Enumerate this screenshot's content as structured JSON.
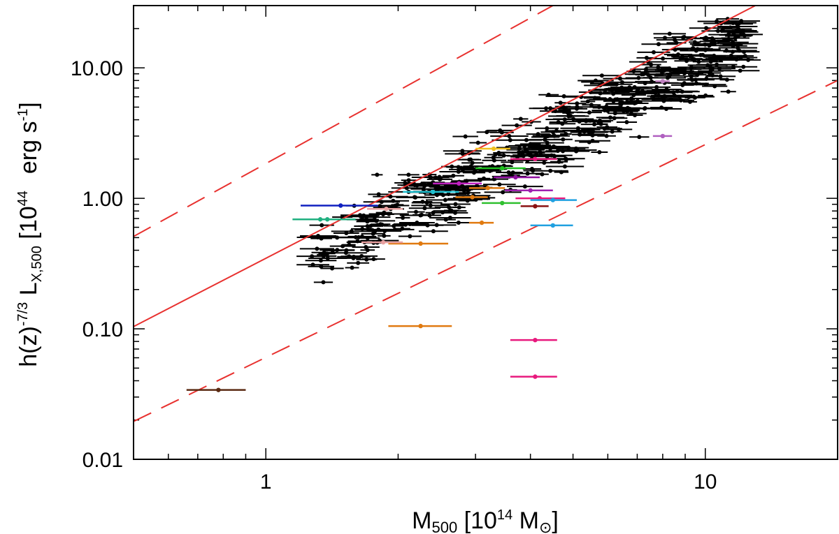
{
  "chart_data": {
    "type": "scatter",
    "xscale": "log",
    "yscale": "log",
    "xlim": [
      0.5,
      20
    ],
    "ylim": [
      0.01,
      30
    ],
    "xlabel": {
      "main": "M",
      "sub": "500",
      "after": " [10",
      "sup": "14",
      "unit": " M",
      "sun_symbol": "⊙",
      "close": "]"
    },
    "ylabel": {
      "pre": "h(z)",
      "sup1": "-7/3",
      "mid": " L",
      "sub": "X,500",
      "bracket": " [10",
      "sup2": "44",
      "unit": "erg s",
      "sup3": "-1",
      "close": "]"
    },
    "x_ticks": [
      {
        "value": 1,
        "label": "1"
      },
      {
        "value": 10,
        "label": "10"
      }
    ],
    "y_ticks": [
      {
        "value": 0.01,
        "label": "0.01"
      },
      {
        "value": 0.1,
        "label": "0.10"
      },
      {
        "value": 1,
        "label": "1.00"
      },
      {
        "value": 10,
        "label": "10.00"
      }
    ],
    "relation": {
      "name": "best-fit relation",
      "points": [
        [
          0.5,
          0.104
        ],
        [
          13.0,
          30.0
        ]
      ],
      "color": "#e8312f"
    },
    "scatter_bounds": [
      {
        "name": "upper bound",
        "points": [
          [
            0.5,
            0.51
          ],
          [
            4.5,
            30.0
          ]
        ],
        "color": "#e8312f"
      },
      {
        "name": "lower bound",
        "points": [
          [
            0.5,
            0.0195
          ],
          [
            20.0,
            8.0
          ]
        ],
        "color": "#e8312f"
      }
    ],
    "main_sample_color": "#000000",
    "highlighted": [
      {
        "x": 0.78,
        "y": 0.034,
        "xerr": [
          0.66,
          0.9
        ],
        "color": "#5a2a12"
      },
      {
        "x": 2.25,
        "y": 0.105,
        "xerr": [
          1.9,
          2.65
        ],
        "color": "#e07a10"
      },
      {
        "x": 4.1,
        "y": 0.082,
        "xerr": [
          3.6,
          4.6
        ],
        "color": "#e8197d"
      },
      {
        "x": 4.1,
        "y": 0.043,
        "xerr": [
          3.6,
          4.6
        ],
        "color": "#e8197d"
      },
      {
        "x": 1.48,
        "y": 0.88,
        "xerr": [
          1.2,
          1.8
        ],
        "color": "#1020c0"
      },
      {
        "x": 1.33,
        "y": 0.69,
        "xerr": [
          1.15,
          1.55
        ],
        "color": "#20b080"
      },
      {
        "x": 1.38,
        "y": 0.69,
        "xerr": [
          1.2,
          1.6
        ],
        "color": "#20b080"
      },
      {
        "x": 2.4,
        "y": 1.12,
        "xerr": [
          2.05,
          2.75
        ],
        "color": "#20c0d0"
      },
      {
        "x": 2.25,
        "y": 0.45,
        "xerr": [
          1.9,
          2.6
        ],
        "color": "#e07a10"
      },
      {
        "x": 1.85,
        "y": 0.46,
        "xerr": [
          1.65,
          2.05
        ],
        "color": "#e8a0a0"
      },
      {
        "x": 1.88,
        "y": 0.83,
        "xerr": [
          1.7,
          2.05
        ],
        "color": "#e8a0a0"
      },
      {
        "x": 3.3,
        "y": 2.4,
        "xerr": [
          3.0,
          3.6
        ],
        "color": "#f0c020"
      },
      {
        "x": 3.45,
        "y": 1.7,
        "xerr": [
          3.0,
          3.9
        ],
        "color": "#20c020"
      },
      {
        "x": 3.45,
        "y": 0.92,
        "xerr": [
          3.1,
          3.8
        ],
        "color": "#30c030"
      },
      {
        "x": 3.2,
        "y": 1.2,
        "xerr": [
          2.9,
          3.5
        ],
        "color": "#e07a10"
      },
      {
        "x": 2.95,
        "y": 1.02,
        "xerr": [
          2.7,
          3.2
        ],
        "color": "#e07a10"
      },
      {
        "x": 3.1,
        "y": 0.65,
        "xerr": [
          2.9,
          3.3
        ],
        "color": "#e07a10"
      },
      {
        "x": 2.75,
        "y": 1.3,
        "xerr": [
          2.4,
          3.1
        ],
        "color": "#c020c0"
      },
      {
        "x": 3.7,
        "y": 1.45,
        "xerr": [
          3.3,
          4.2
        ],
        "color": "#9010a0"
      },
      {
        "x": 4.0,
        "y": 1.15,
        "xerr": [
          3.5,
          4.5
        ],
        "color": "#a020b0"
      },
      {
        "x": 4.1,
        "y": 2.0,
        "xerr": [
          3.6,
          4.6
        ],
        "color": "#e8197d"
      },
      {
        "x": 4.2,
        "y": 1.0,
        "xerr": [
          3.7,
          4.8
        ],
        "color": "#e8197d"
      },
      {
        "x": 4.1,
        "y": 0.87,
        "xerr": [
          3.8,
          4.4
        ],
        "color": "#8a1010"
      },
      {
        "x": 4.5,
        "y": 0.97,
        "xerr": [
          4.0,
          5.1
        ],
        "color": "#20a0e0"
      },
      {
        "x": 4.5,
        "y": 0.62,
        "xerr": [
          4.0,
          5.0
        ],
        "color": "#20a0e0"
      },
      {
        "x": 8.0,
        "y": 3.0,
        "xerr": [
          7.6,
          8.4
        ],
        "color": "#b060c0"
      },
      {
        "x": 8.0,
        "y": 7.9,
        "xerr": [
          7.7,
          8.3
        ],
        "color": "#c080c0"
      }
    ]
  }
}
